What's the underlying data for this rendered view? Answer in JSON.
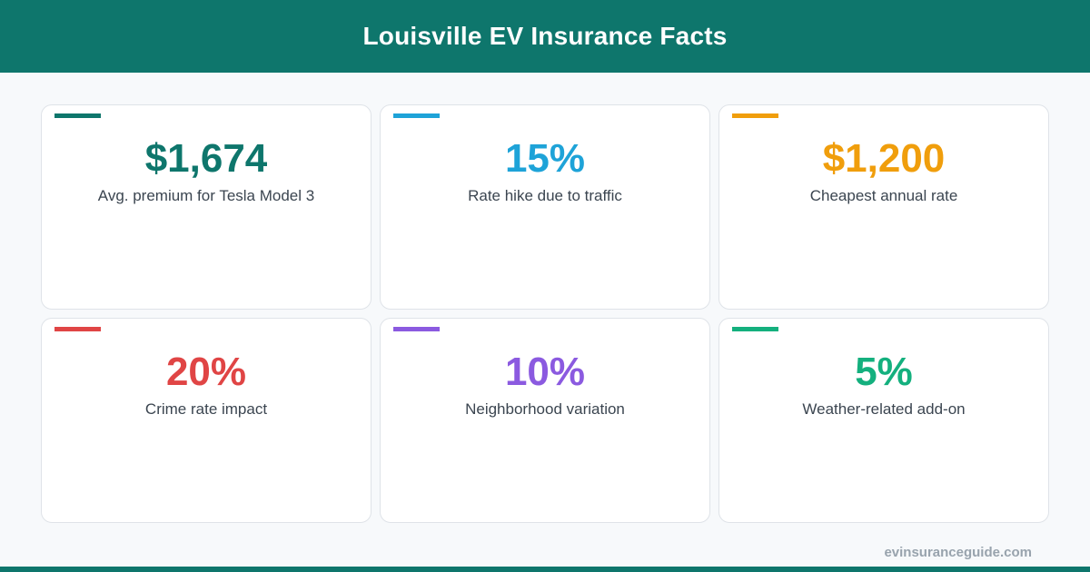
{
  "header": {
    "title": "Louisville EV Insurance Facts"
  },
  "cards": [
    {
      "value": "$1,674",
      "label": "Avg. premium for Tesla Model 3",
      "color": "#0e766c"
    },
    {
      "value": "15%",
      "label": "Rate hike due to traffic",
      "color": "#1ea3d8"
    },
    {
      "value": "$1,200",
      "label": "Cheapest annual rate",
      "color": "#f09e0c"
    },
    {
      "value": "20%",
      "label": "Crime rate impact",
      "color": "#e04545"
    },
    {
      "value": "10%",
      "label": "Neighborhood variation",
      "color": "#8b5ae0"
    },
    {
      "value": "5%",
      "label": "Weather-related add-on",
      "color": "#14b07e"
    }
  ],
  "footer": {
    "site": "evinsuranceguide.com"
  }
}
